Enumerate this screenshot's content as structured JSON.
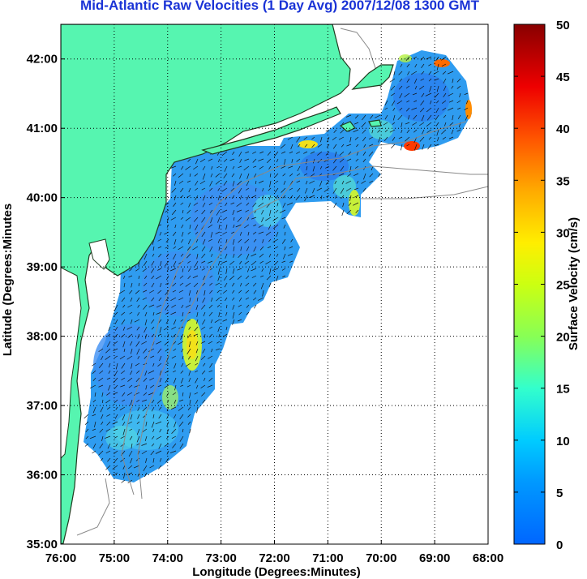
{
  "title": "Mid-Atlantic Raw Velocities (1 Day Avg) 2007/12/08 1300 GMT",
  "xlabel": "Longitude (Degrees:Minutes)",
  "ylabel": "Latitude (Degrees:Minutes",
  "colorbar_label": "Surface Velocity (cm/s)",
  "x_ticks": [
    "76:00",
    "75:00",
    "74:00",
    "73:00",
    "72:00",
    "71:00",
    "70:00",
    "69:00",
    "68:00"
  ],
  "y_ticks": [
    "42:00",
    "41:00",
    "40:00",
    "39:00",
    "38:00",
    "37:00",
    "36:00",
    "35:00"
  ],
  "colorbar_ticks": [
    "0",
    "5",
    "10",
    "15",
    "20",
    "25",
    "30",
    "35",
    "40",
    "45",
    "50"
  ],
  "colors": {
    "land": "#56f5b0",
    "land_outline": "#1f3a1f",
    "ocean": "#ffffff",
    "title": "#1a33d6",
    "bathymetry": "#8a8a8a",
    "grid": "#000000"
  },
  "chart_data": {
    "type": "heatmap",
    "title": "Mid-Atlantic Raw Velocities (1 Day Avg) 2007/12/08 1300 GMT",
    "xlabel": "Longitude (Degrees:Minutes)",
    "ylabel": "Latitude (Degrees:Minutes",
    "xlim": [
      -76,
      -68
    ],
    "ylim": [
      35,
      42.5
    ],
    "colorbar": {
      "label": "Surface Velocity (cm/s)",
      "range": [
        0,
        50
      ],
      "colormap": "jet"
    },
    "grid": true,
    "features": [
      "coastline",
      "bathymetry contours",
      "velocity vectors"
    ]
  }
}
